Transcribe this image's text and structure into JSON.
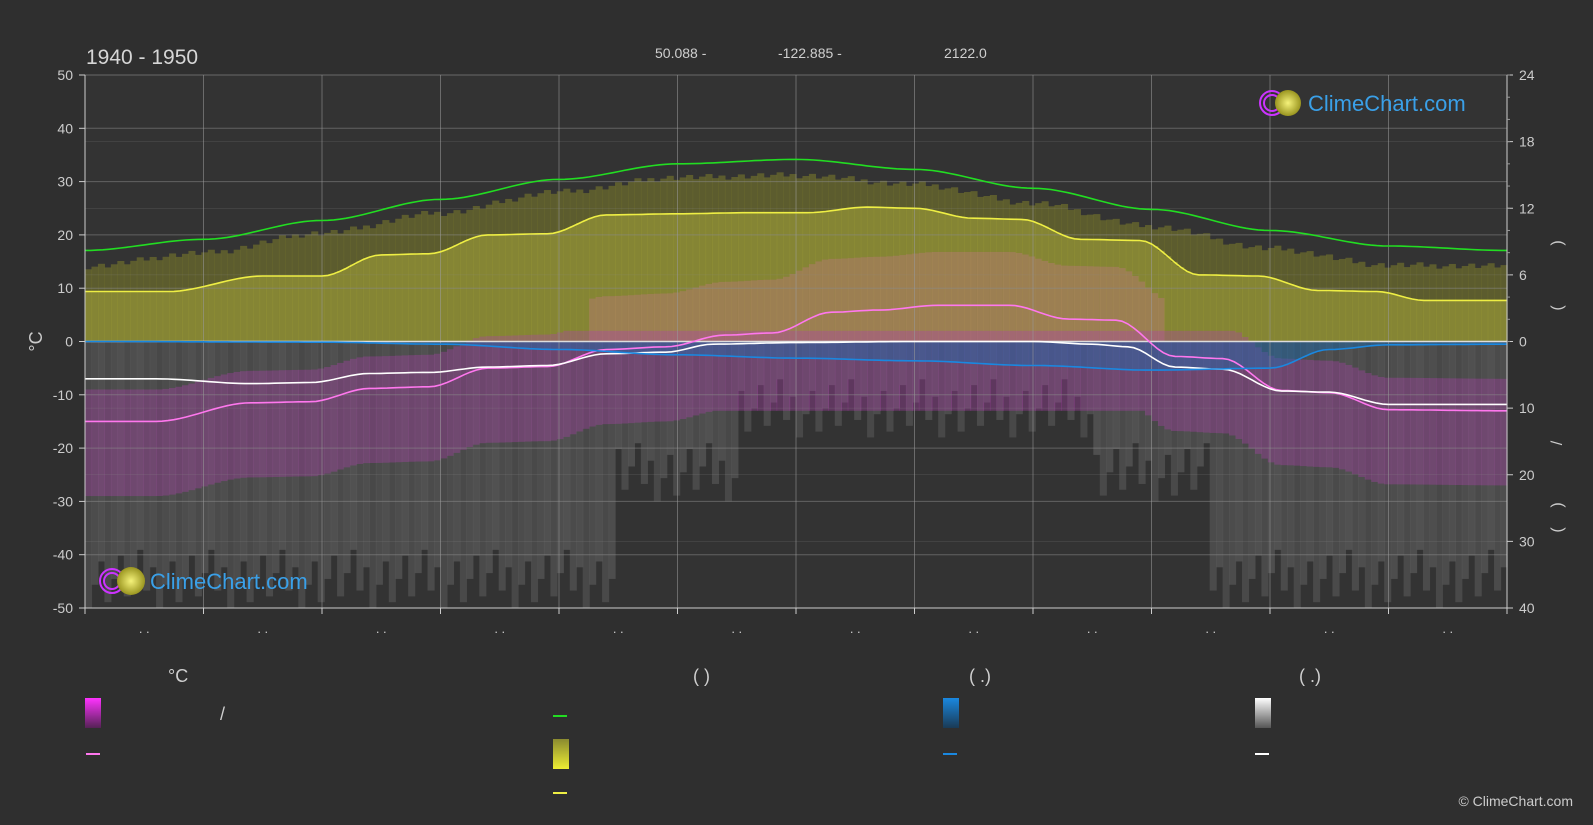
{
  "header": {
    "period": "1940 - 1950",
    "latitude": "50.088 -",
    "longitude": "-122.885 -",
    "elevation": "2122.0"
  },
  "brand": {
    "logo_text": "ClimeChart.com",
    "copyright": "© ClimeChart.com"
  },
  "legend": {
    "temp_unit": "°C",
    "col2_head": "(          )",
    "col3_head": "(   .)",
    "col4_head": "(   .)",
    "slash": "/"
  },
  "colors": {
    "background": "#2f2f2f",
    "daylight": "#22dd22",
    "sunshine": "#eeee44",
    "max_temp": "#ff77ee",
    "min_temp": "#ffffff",
    "precipitation": "#1a88e0",
    "logo_blue": "#3aa0e8"
  },
  "chart_data": {
    "type": "line",
    "x_months": 12,
    "left_axis": {
      "label": "°C",
      "range": [
        -50,
        50
      ],
      "ticks": [
        50,
        40,
        30,
        20,
        10,
        0,
        -10,
        -20,
        -30,
        -40,
        -50
      ]
    },
    "right_axis_top": {
      "range": [
        0,
        24
      ],
      "ticks": [
        24,
        18,
        12,
        6,
        0
      ]
    },
    "right_axis_bottom": {
      "range": [
        0,
        40
      ],
      "ticks": [
        10,
        20,
        30,
        40
      ]
    },
    "x_tick_labels": [
      ". .",
      ". .",
      ". .",
      ". .",
      ". .",
      ". .",
      ". .",
      ". .",
      ". .",
      ". .",
      ". .",
      ". ."
    ],
    "grid": true,
    "series": [
      {
        "key": "daylight_hours",
        "axis": "hours",
        "color": "#22dd22",
        "points": [
          [
            0,
            8.2
          ],
          [
            1,
            9.2
          ],
          [
            2,
            10.9
          ],
          [
            3,
            12.8
          ],
          [
            4,
            14.6
          ],
          [
            5,
            16.0
          ],
          [
            6,
            16.4
          ],
          [
            7,
            15.5
          ],
          [
            8,
            13.8
          ],
          [
            9,
            11.9
          ],
          [
            10,
            10.0
          ],
          [
            11,
            8.6
          ],
          [
            12,
            8.2
          ]
        ]
      },
      {
        "key": "sunshine_hours",
        "axis": "hours",
        "color": "#eeee44",
        "points": [
          [
            0,
            4.5
          ],
          [
            0.7,
            4.5
          ],
          [
            1.5,
            5.9
          ],
          [
            2,
            5.9
          ],
          [
            2.5,
            7.8
          ],
          [
            2.9,
            7.9
          ],
          [
            3.4,
            9.6
          ],
          [
            3.9,
            9.7
          ],
          [
            4.4,
            11.4
          ],
          [
            5.0,
            11.5
          ],
          [
            5.6,
            11.6
          ],
          [
            6.1,
            11.6
          ],
          [
            6.6,
            12.1
          ],
          [
            7.0,
            12.0
          ],
          [
            7.5,
            11.1
          ],
          [
            7.9,
            11.0
          ],
          [
            8.4,
            9.2
          ],
          [
            8.9,
            9.1
          ],
          [
            9.4,
            6.0
          ],
          [
            9.9,
            5.9
          ],
          [
            10.4,
            4.6
          ],
          [
            10.9,
            4.5
          ],
          [
            11.3,
            3.7
          ],
          [
            12,
            3.7
          ]
        ]
      },
      {
        "key": "max_temp_band_top",
        "axis": "hours",
        "color": "#9a9a3a",
        "points": [
          [
            0,
            6.8
          ],
          [
            1,
            8.0
          ],
          [
            2,
            9.8
          ],
          [
            3,
            11.6
          ],
          [
            4,
            13.5
          ],
          [
            5,
            14.8
          ],
          [
            6,
            15.0
          ],
          [
            7,
            14.2
          ],
          [
            8,
            12.5
          ],
          [
            9,
            10.4
          ],
          [
            10,
            8.4
          ],
          [
            11,
            6.9
          ],
          [
            12,
            6.8
          ]
        ]
      },
      {
        "key": "max_temp_mean",
        "axis": "celsius",
        "color": "#ff77ee",
        "points": [
          [
            0,
            -15
          ],
          [
            0.6,
            -15
          ],
          [
            1.4,
            -11.5
          ],
          [
            1.9,
            -11.3
          ],
          [
            2.4,
            -8.8
          ],
          [
            2.9,
            -8.5
          ],
          [
            3.4,
            -5.0
          ],
          [
            3.9,
            -4.7
          ],
          [
            4.4,
            -1.5
          ],
          [
            4.9,
            -1.0
          ],
          [
            5.4,
            1.2
          ],
          [
            5.8,
            1.6
          ],
          [
            6.3,
            5.5
          ],
          [
            6.7,
            5.9
          ],
          [
            7.2,
            6.8
          ],
          [
            7.8,
            6.8
          ],
          [
            8.3,
            4.2
          ],
          [
            8.7,
            4.0
          ],
          [
            9.2,
            -2.8
          ],
          [
            9.6,
            -3.2
          ],
          [
            10.1,
            -9.2
          ],
          [
            10.5,
            -9.6
          ],
          [
            11.0,
            -12.8
          ],
          [
            12,
            -13.0
          ]
        ]
      },
      {
        "key": "min_temp_mean",
        "axis": "celsius",
        "color": "#ffffff",
        "points": [
          [
            0,
            -7.0
          ],
          [
            0.6,
            -7.0
          ],
          [
            1.4,
            -7.9
          ],
          [
            1.9,
            -7.7
          ],
          [
            2.4,
            -6.0
          ],
          [
            2.9,
            -5.8
          ],
          [
            3.4,
            -4.8
          ],
          [
            3.9,
            -4.5
          ],
          [
            4.4,
            -2.3
          ],
          [
            4.9,
            -2.0
          ],
          [
            5.3,
            -0.5
          ],
          [
            6.0,
            -0.2
          ],
          [
            7.0,
            0.0
          ],
          [
            8.0,
            0.0
          ],
          [
            8.5,
            -0.5
          ],
          [
            8.8,
            -1.0
          ],
          [
            9.2,
            -4.8
          ],
          [
            9.6,
            -5.2
          ],
          [
            10.1,
            -9.3
          ],
          [
            10.5,
            -9.5
          ],
          [
            11.0,
            -11.8
          ],
          [
            12,
            -11.8
          ]
        ]
      },
      {
        "key": "precipitation",
        "axis": "mm",
        "color": "#1a88e0",
        "points": [
          [
            0,
            0
          ],
          [
            2,
            0.1
          ],
          [
            3,
            0.4
          ],
          [
            4,
            1.2
          ],
          [
            5,
            2.0
          ],
          [
            6,
            2.5
          ],
          [
            7,
            2.9
          ],
          [
            8,
            3.6
          ],
          [
            9,
            4.3
          ],
          [
            10,
            4.0
          ],
          [
            10.5,
            1.2
          ],
          [
            11,
            0.5
          ],
          [
            12,
            0.4
          ]
        ]
      }
    ]
  }
}
